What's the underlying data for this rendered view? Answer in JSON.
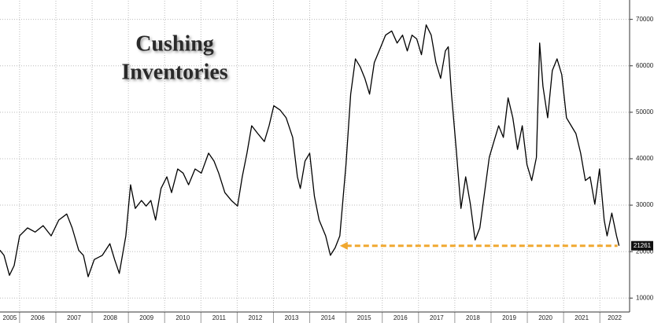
{
  "chart_data": {
    "type": "line",
    "title": [
      "Cushing",
      "Inventories"
    ],
    "x": [
      2005.46,
      2005.57,
      2005.72,
      2005.85,
      2006.0,
      2006.22,
      2006.43,
      2006.65,
      2006.87,
      2007.08,
      2007.3,
      2007.45,
      2007.63,
      2007.76,
      2007.89,
      2008.06,
      2008.28,
      2008.49,
      2008.62,
      2008.75,
      2008.93,
      2009.06,
      2009.19,
      2009.36,
      2009.49,
      2009.62,
      2009.75,
      2009.9,
      2010.06,
      2010.19,
      2010.36,
      2010.51,
      2010.66,
      2010.84,
      2011.01,
      2011.21,
      2011.36,
      2011.49,
      2011.66,
      2011.84,
      2012.01,
      2012.14,
      2012.27,
      2012.4,
      2012.57,
      2012.75,
      2012.88,
      2013.01,
      2013.18,
      2013.35,
      2013.53,
      2013.66,
      2013.74,
      2013.87,
      2014.0,
      2014.13,
      2014.26,
      2014.44,
      2014.57,
      2014.7,
      2014.83,
      2015.0,
      2015.13,
      2015.26,
      2015.39,
      2015.52,
      2015.65,
      2015.78,
      2015.96,
      2016.09,
      2016.26,
      2016.41,
      2016.56,
      2016.69,
      2016.82,
      2016.95,
      2017.08,
      2017.21,
      2017.35,
      2017.48,
      2017.61,
      2017.74,
      2017.82,
      2017.91,
      2018.04,
      2018.17,
      2018.3,
      2018.43,
      2018.56,
      2018.69,
      2018.82,
      2018.95,
      2019.08,
      2019.21,
      2019.34,
      2019.47,
      2019.6,
      2019.73,
      2019.86,
      2019.99,
      2020.12,
      2020.25,
      2020.34,
      2020.43,
      2020.56,
      2020.69,
      2020.82,
      2020.95,
      2021.08,
      2021.21,
      2021.34,
      2021.47,
      2021.6,
      2021.73,
      2021.86,
      2021.99,
      2022.12,
      2022.2,
      2022.33,
      2022.46,
      2022.53
    ],
    "values": [
      20300,
      19200,
      14900,
      17000,
      23400,
      25100,
      24200,
      25600,
      23400,
      26800,
      28100,
      25100,
      20300,
      19200,
      14600,
      18300,
      19200,
      21700,
      18300,
      15300,
      23400,
      34400,
      29300,
      31000,
      29800,
      31000,
      26800,
      33600,
      36100,
      32700,
      37800,
      36900,
      34400,
      37800,
      36900,
      41200,
      39500,
      36900,
      32700,
      31000,
      29800,
      36100,
      41200,
      47100,
      45400,
      43700,
      47100,
      51400,
      50500,
      48800,
      44600,
      36100,
      33600,
      39500,
      41200,
      31900,
      26800,
      23400,
      19200,
      20800,
      23400,
      38700,
      53900,
      61500,
      59800,
      57300,
      53900,
      60700,
      64100,
      66600,
      67500,
      64900,
      66600,
      63200,
      66600,
      65800,
      62400,
      68800,
      66600,
      60700,
      57300,
      63200,
      64100,
      53900,
      42000,
      29300,
      36100,
      30200,
      22500,
      25100,
      32700,
      40300,
      43700,
      47100,
      44600,
      53100,
      48800,
      42000,
      47100,
      38700,
      35300,
      40300,
      64900,
      55600,
      48800,
      59000,
      61500,
      58100,
      48800,
      47100,
      45400,
      41200,
      35300,
      36100,
      30200,
      37800,
      26800,
      23400,
      28300,
      23400,
      21261
    ],
    "color": "#000000",
    "xlim": [
      2005.46,
      2022.82
    ],
    "xticks": [
      {
        "value": 2005,
        "label": "2005"
      },
      {
        "value": 2006,
        "label": "2006"
      },
      {
        "value": 2007,
        "label": "2007"
      },
      {
        "value": 2008,
        "label": "2008"
      },
      {
        "value": 2009,
        "label": "2009"
      },
      {
        "value": 2010,
        "label": "2010"
      },
      {
        "value": 2011,
        "label": "2011"
      },
      {
        "value": 2012,
        "label": "2012"
      },
      {
        "value": 2013,
        "label": "2013"
      },
      {
        "value": 2014,
        "label": "2014"
      },
      {
        "value": 2015,
        "label": "2015"
      },
      {
        "value": 2016,
        "label": "2016"
      },
      {
        "value": 2017,
        "label": "2017"
      },
      {
        "value": 2018,
        "label": "2018"
      },
      {
        "value": 2019,
        "label": "2019"
      },
      {
        "value": 2020,
        "label": "2020"
      },
      {
        "value": 2021,
        "label": "2021"
      },
      {
        "value": 2022,
        "label": "2022"
      }
    ],
    "ylim": [
      7000,
      74000
    ],
    "yticks": [
      10000,
      20000,
      30000,
      40000,
      50000,
      60000,
      70000
    ],
    "grid": true,
    "arrow": {
      "x_start": 2014.83,
      "color": "#f0a830"
    }
  }
}
